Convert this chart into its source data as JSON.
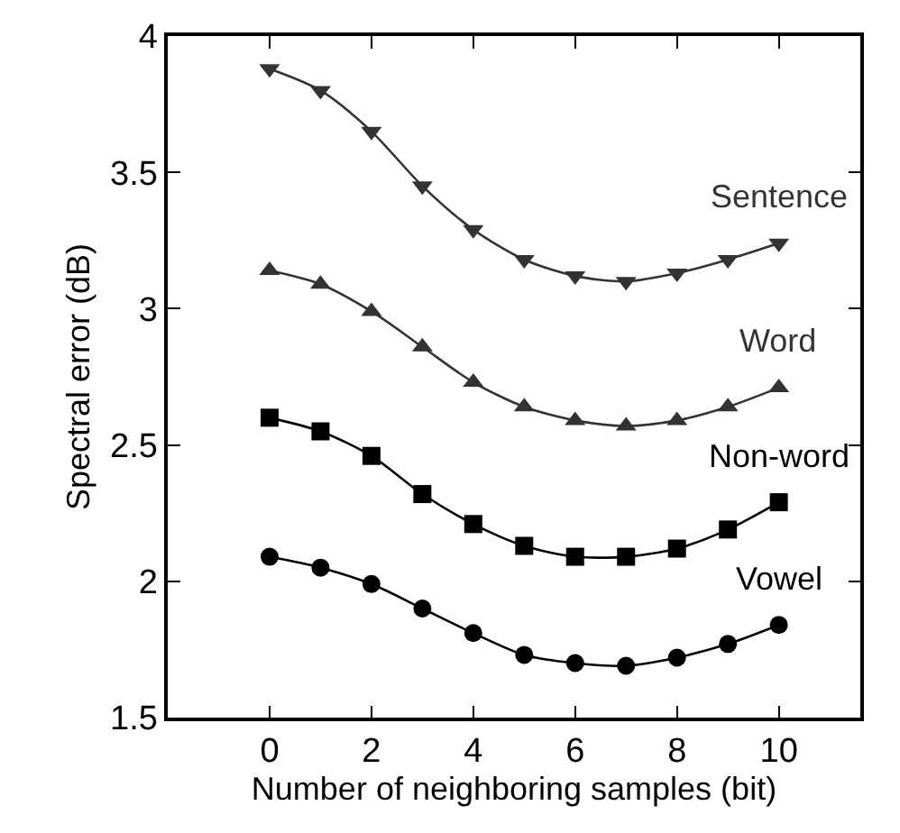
{
  "chart_data": {
    "type": "line",
    "xlabel": "Number of neighboring samples (bit)",
    "ylabel": "Spectral error (dB)",
    "x": [
      0,
      1,
      2,
      3,
      4,
      5,
      6,
      7,
      8,
      9,
      10
    ],
    "series": [
      {
        "name": "Sentence",
        "color": "#333333",
        "marker": "triangle-down",
        "values": [
          3.88,
          3.8,
          3.65,
          3.45,
          3.29,
          3.18,
          3.12,
          3.1,
          3.13,
          3.18,
          3.24
        ]
      },
      {
        "name": "Word",
        "color": "#333333",
        "marker": "triangle",
        "values": [
          3.14,
          3.09,
          2.99,
          2.86,
          2.73,
          2.64,
          2.59,
          2.57,
          2.59,
          2.64,
          2.71
        ]
      },
      {
        "name": "Non-word",
        "color": "#000000",
        "marker": "square",
        "values": [
          2.6,
          2.55,
          2.46,
          2.32,
          2.21,
          2.13,
          2.09,
          2.09,
          2.12,
          2.19,
          2.29
        ]
      },
      {
        "name": "Vowel",
        "color": "#000000",
        "marker": "circle",
        "values": [
          2.09,
          2.05,
          1.99,
          1.9,
          1.81,
          1.73,
          1.7,
          1.69,
          1.72,
          1.77,
          1.84
        ]
      }
    ],
    "xlim": [
      -2,
      11.6
    ],
    "xticks": [
      0,
      2,
      4,
      6,
      8,
      10
    ],
    "ylim": [
      1.5,
      4
    ],
    "yticks": [
      1.5,
      2,
      2.5,
      3,
      {
        "value": 3.5,
        "label": "3.5"
      },
      4
    ],
    "legend": "right",
    "line_style": "solid"
  }
}
